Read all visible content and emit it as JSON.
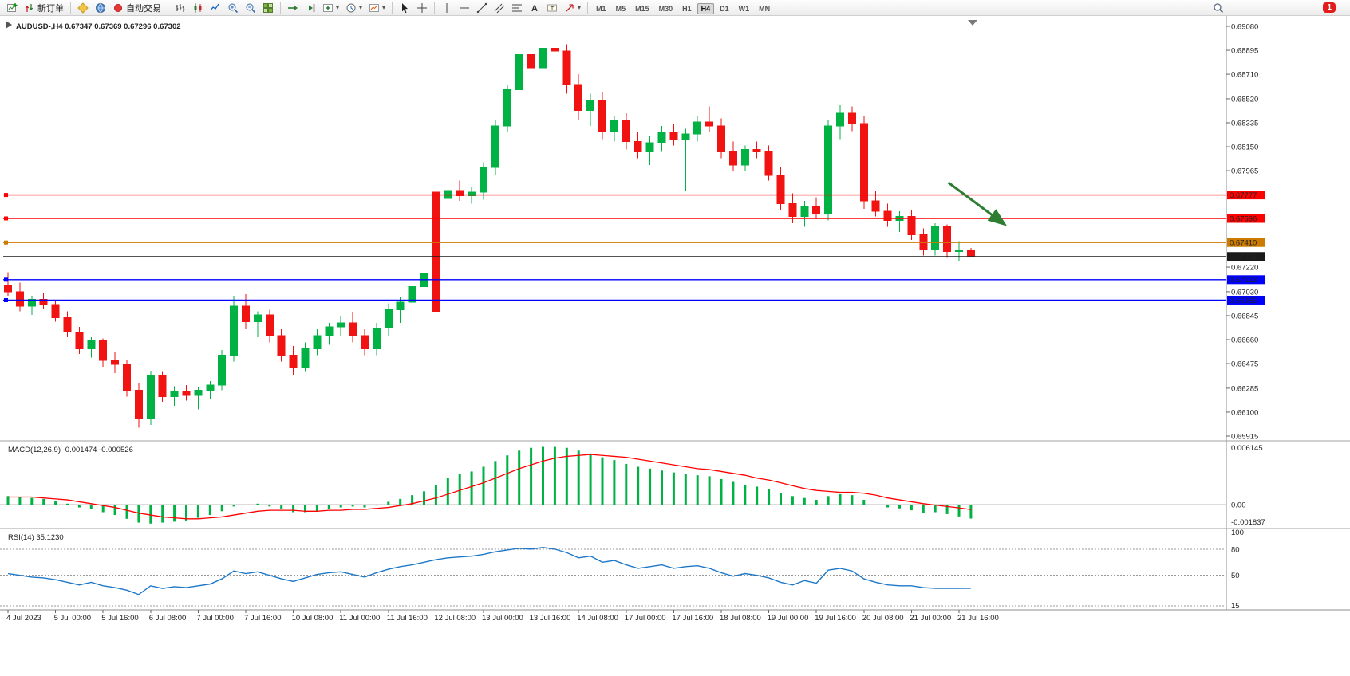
{
  "window": {
    "badge_count": "1"
  },
  "toolbar": {
    "new_order_label": "新订单",
    "autotrading_label": "自动交易",
    "timeframes": [
      "M1",
      "M5",
      "M15",
      "M30",
      "H1",
      "H4",
      "D1",
      "W1",
      "MN"
    ],
    "active_timeframe": "H4"
  },
  "chart_data": {
    "type": "candlestick",
    "title": "AUDUSD-,H4",
    "ohlc": {
      "open": "0.67347",
      "high": "0.67369",
      "low": "0.67296",
      "close": "0.67302"
    },
    "colors": {
      "up": "#00b244",
      "down": "#f11212"
    },
    "price_ticks": [
      "0.69080",
      "0.68895",
      "0.68710",
      "0.68520",
      "0.68335",
      "0.68150",
      "0.67965",
      "0.67220",
      "0.67030",
      "0.66845",
      "0.66660",
      "0.66475",
      "0.66285",
      "0.66100",
      "0.65915"
    ],
    "price_lines": [
      {
        "value": 0.67777,
        "label": "0.67777",
        "color": "#ff0000"
      },
      {
        "value": 0.67596,
        "label": "0.67596",
        "color": "#ff0000"
      },
      {
        "value": 0.6741,
        "label": "0.67410",
        "color": "#cc7a00"
      },
      {
        "value": 0.67302,
        "label": "0.67302",
        "color": "#1a1a1a",
        "role": "current-price"
      },
      {
        "value": 0.67123,
        "label": "0.67123",
        "color": "#0000ff"
      },
      {
        "value": 0.66965,
        "label": "0.66965",
        "color": "#0000ff"
      }
    ],
    "time_labels": [
      "4 Jul 2023",
      "5 Jul 00:00",
      "5 Jul 16:00",
      "6 Jul 08:00",
      "7 Jul 00:00",
      "7 Jul 16:00",
      "10 Jul 08:00",
      "11 Jul 00:00",
      "11 Jul 16:00",
      "12 Jul 08:00",
      "13 Jul 00:00",
      "13 Jul 16:00",
      "14 Jul 08:00",
      "17 Jul 00:00",
      "17 Jul 16:00",
      "18 Jul 08:00",
      "19 Jul 00:00",
      "19 Jul 16:00",
      "20 Jul 08:00",
      "21 Jul 00:00",
      "21 Jul 16:00"
    ],
    "candles": [
      [
        0.6708,
        0.6718,
        0.67,
        0.6703
      ],
      [
        0.6703,
        0.671,
        0.6688,
        0.6692
      ],
      [
        0.6692,
        0.67,
        0.6685,
        0.6697
      ],
      [
        0.6697,
        0.6702,
        0.669,
        0.6693
      ],
      [
        0.6693,
        0.6696,
        0.668,
        0.6683
      ],
      [
        0.6683,
        0.6688,
        0.6668,
        0.6672
      ],
      [
        0.6672,
        0.6676,
        0.6655,
        0.6659
      ],
      [
        0.6659,
        0.6668,
        0.6652,
        0.6665
      ],
      [
        0.6665,
        0.6667,
        0.6645,
        0.665
      ],
      [
        0.665,
        0.6656,
        0.664,
        0.6647
      ],
      [
        0.6647,
        0.665,
        0.6622,
        0.6627
      ],
      [
        0.6627,
        0.6632,
        0.6598,
        0.6605
      ],
      [
        0.6605,
        0.6642,
        0.66,
        0.6638
      ],
      [
        0.6638,
        0.6641,
        0.6618,
        0.6622
      ],
      [
        0.6622,
        0.663,
        0.6615,
        0.6626
      ],
      [
        0.6626,
        0.6631,
        0.6619,
        0.6623
      ],
      [
        0.6623,
        0.6629,
        0.6612,
        0.6627
      ],
      [
        0.6627,
        0.6634,
        0.662,
        0.6631
      ],
      [
        0.6631,
        0.6658,
        0.6627,
        0.6654
      ],
      [
        0.6654,
        0.67,
        0.6649,
        0.6692
      ],
      [
        0.6692,
        0.6701,
        0.6674,
        0.668
      ],
      [
        0.668,
        0.6688,
        0.6668,
        0.6685
      ],
      [
        0.6685,
        0.6689,
        0.6664,
        0.6669
      ],
      [
        0.6669,
        0.6674,
        0.6649,
        0.6654
      ],
      [
        0.6654,
        0.6661,
        0.6639,
        0.6644
      ],
      [
        0.6644,
        0.6664,
        0.6641,
        0.6659
      ],
      [
        0.6659,
        0.6674,
        0.6654,
        0.6669
      ],
      [
        0.6669,
        0.6679,
        0.6662,
        0.6676
      ],
      [
        0.6676,
        0.6684,
        0.6669,
        0.6679
      ],
      [
        0.6679,
        0.6687,
        0.6664,
        0.6669
      ],
      [
        0.6669,
        0.6674,
        0.6654,
        0.6659
      ],
      [
        0.6659,
        0.6679,
        0.6654,
        0.6675
      ],
      [
        0.6675,
        0.6694,
        0.6669,
        0.6689
      ],
      [
        0.6689,
        0.6699,
        0.6679,
        0.6695
      ],
      [
        0.6695,
        0.6711,
        0.6687,
        0.6707
      ],
      [
        0.6707,
        0.6721,
        0.6694,
        0.6717
      ],
      [
        0.678,
        0.6784,
        0.6683,
        0.6688
      ],
      [
        0.6775,
        0.6787,
        0.6767,
        0.6781
      ],
      [
        0.6781,
        0.6789,
        0.6773,
        0.6777
      ],
      [
        0.6777,
        0.6784,
        0.6771,
        0.678
      ],
      [
        0.678,
        0.6803,
        0.6774,
        0.6799
      ],
      [
        0.6799,
        0.6836,
        0.6793,
        0.6831
      ],
      [
        0.6831,
        0.6863,
        0.6826,
        0.6859
      ],
      [
        0.6859,
        0.6891,
        0.6851,
        0.6886
      ],
      [
        0.6886,
        0.6896,
        0.6869,
        0.6876
      ],
      [
        0.6876,
        0.6894,
        0.6871,
        0.6891
      ],
      [
        0.6891,
        0.69,
        0.6883,
        0.6889
      ],
      [
        0.6889,
        0.6894,
        0.6856,
        0.6863
      ],
      [
        0.6863,
        0.6871,
        0.6836,
        0.6843
      ],
      [
        0.6843,
        0.6856,
        0.6831,
        0.6851
      ],
      [
        0.6851,
        0.6857,
        0.6821,
        0.6827
      ],
      [
        0.6827,
        0.6839,
        0.6819,
        0.6835
      ],
      [
        0.6835,
        0.6841,
        0.6813,
        0.6819
      ],
      [
        0.6819,
        0.6826,
        0.6806,
        0.6811
      ],
      [
        0.6811,
        0.6823,
        0.6801,
        0.6818
      ],
      [
        0.6818,
        0.6831,
        0.6811,
        0.6826
      ],
      [
        0.6826,
        0.6833,
        0.6816,
        0.6821
      ],
      [
        0.6821,
        0.6829,
        0.6781,
        0.6825
      ],
      [
        0.6825,
        0.6839,
        0.6819,
        0.6834
      ],
      [
        0.6834,
        0.6846,
        0.6826,
        0.6831
      ],
      [
        0.6831,
        0.6837,
        0.6806,
        0.6811
      ],
      [
        0.6811,
        0.6819,
        0.6796,
        0.6801
      ],
      [
        0.6801,
        0.6816,
        0.6796,
        0.6813
      ],
      [
        0.6813,
        0.6819,
        0.6806,
        0.6811
      ],
      [
        0.6811,
        0.6816,
        0.6789,
        0.6793
      ],
      [
        0.6793,
        0.6799,
        0.6766,
        0.6771
      ],
      [
        0.6771,
        0.6779,
        0.6756,
        0.6761
      ],
      [
        0.6761,
        0.6773,
        0.6753,
        0.6769
      ],
      [
        0.6769,
        0.6776,
        0.6759,
        0.6763
      ],
      [
        0.6763,
        0.6836,
        0.6758,
        0.6831
      ],
      [
        0.6831,
        0.6847,
        0.6821,
        0.6841
      ],
      [
        0.6841,
        0.6846,
        0.6827,
        0.6833
      ],
      [
        0.6833,
        0.6839,
        0.6767,
        0.6773
      ],
      [
        0.6773,
        0.6781,
        0.6761,
        0.6765
      ],
      [
        0.6765,
        0.6771,
        0.6753,
        0.6758
      ],
      [
        0.6758,
        0.6765,
        0.6749,
        0.6761
      ],
      [
        0.6761,
        0.6766,
        0.6743,
        0.6747
      ],
      [
        0.6747,
        0.6752,
        0.6731,
        0.6736
      ],
      [
        0.6736,
        0.6756,
        0.6731,
        0.6753
      ],
      [
        0.6753,
        0.6755,
        0.6729,
        0.6734
      ],
      [
        0.6734,
        0.6742,
        0.6727,
        0.67347
      ],
      [
        0.67347,
        0.67369,
        0.67296,
        0.67302
      ]
    ],
    "arrow_annotation": {
      "from_bar": 79.1,
      "from_price": 0.67873,
      "to_bar": 83.8,
      "to_price": 0.67553,
      "color": "#2e7d32"
    }
  },
  "macd": {
    "label": "MACD(12,26,9)",
    "values_text": "-0.001474 -0.000526",
    "axis_labels": [
      "0.006145",
      "0.00",
      "-0.001837"
    ],
    "axis_max": 0.006145,
    "axis_min": -0.001837,
    "colors": {
      "histogram": "#00b244",
      "signal": "#ff0000"
    },
    "histogram": [
      0.0009,
      0.0008,
      0.0007,
      0.0006,
      0.0004,
      0.0001,
      -0.0003,
      -0.0005,
      -0.0008,
      -0.0011,
      -0.0015,
      -0.0019,
      -0.002,
      -0.0019,
      -0.0018,
      -0.0017,
      -0.0014,
      -0.0011,
      -0.0007,
      -0.0002,
      0.0,
      0.0001,
      -0.0002,
      -0.0005,
      -0.0008,
      -0.0008,
      -0.0007,
      -0.0005,
      -0.0003,
      -0.0002,
      -0.0003,
      -0.0001,
      0.0003,
      0.0006,
      0.001,
      0.0014,
      0.0021,
      0.0028,
      0.0032,
      0.0035,
      0.004,
      0.0046,
      0.0052,
      0.0057,
      0.006,
      0.0061,
      0.0061,
      0.006,
      0.0057,
      0.0054,
      0.005,
      0.0047,
      0.0043,
      0.004,
      0.0038,
      0.0036,
      0.0034,
      0.0032,
      0.0031,
      0.003,
      0.0027,
      0.0024,
      0.0021,
      0.0019,
      0.0016,
      0.0012,
      0.0009,
      0.0007,
      0.0005,
      0.0009,
      0.0011,
      0.001,
      0.0005,
      0.0,
      -0.0003,
      -0.0004,
      -0.0006,
      -0.0009,
      -0.0008,
      -0.001,
      -0.00125,
      -0.001474
    ],
    "signal": [
      0.0008,
      0.0008,
      0.0008,
      0.0007,
      0.0006,
      0.0005,
      0.0003,
      0.0001,
      -0.0001,
      -0.0003,
      -0.0006,
      -0.0009,
      -0.0011,
      -0.0013,
      -0.0014,
      -0.0015,
      -0.0015,
      -0.0014,
      -0.0013,
      -0.0011,
      -0.0009,
      -0.0007,
      -0.0006,
      -0.0006,
      -0.0006,
      -0.0007,
      -0.0007,
      -0.0006,
      -0.0006,
      -0.0005,
      -0.0005,
      -0.0004,
      -0.0003,
      -0.0001,
      0.0001,
      0.0004,
      0.0007,
      0.0011,
      0.0015,
      0.0019,
      0.0023,
      0.0028,
      0.0033,
      0.0038,
      0.0042,
      0.0046,
      0.0049,
      0.0051,
      0.0052,
      0.0053,
      0.0052,
      0.0051,
      0.005,
      0.0048,
      0.0046,
      0.0044,
      0.0042,
      0.004,
      0.0038,
      0.0037,
      0.0035,
      0.0033,
      0.0031,
      0.0028,
      0.0026,
      0.0023,
      0.002,
      0.0017,
      0.0015,
      0.0014,
      0.0013,
      0.0013,
      0.0012,
      0.001,
      0.0007,
      0.0005,
      0.0003,
      0.0001,
      -5e-05,
      -0.0002,
      -0.00035,
      -0.000526
    ]
  },
  "rsi": {
    "label": "RSI(14)",
    "value_text": "35.1230",
    "levels": [
      80,
      50,
      15
    ],
    "axis_labels": [
      "100",
      "80",
      "50",
      "15"
    ],
    "color": "#1e78c8",
    "values": [
      52,
      50,
      48,
      47,
      45,
      42,
      39,
      42,
      38,
      36,
      33,
      28,
      38,
      35,
      37,
      36,
      38,
      40,
      46,
      55,
      52,
      54,
      50,
      46,
      43,
      47,
      51,
      53,
      54,
      51,
      48,
      53,
      57,
      60,
      62,
      65,
      68,
      70,
      71,
      72,
      74,
      77,
      79,
      81,
      80,
      82,
      80,
      76,
      70,
      72,
      65,
      67,
      62,
      58,
      60,
      62,
      58,
      60,
      61,
      58,
      53,
      49,
      52,
      50,
      47,
      42,
      39,
      44,
      41,
      56,
      58,
      55,
      46,
      42,
      39,
      38,
      38,
      36,
      35,
      35,
      35,
      35.12
    ]
  }
}
